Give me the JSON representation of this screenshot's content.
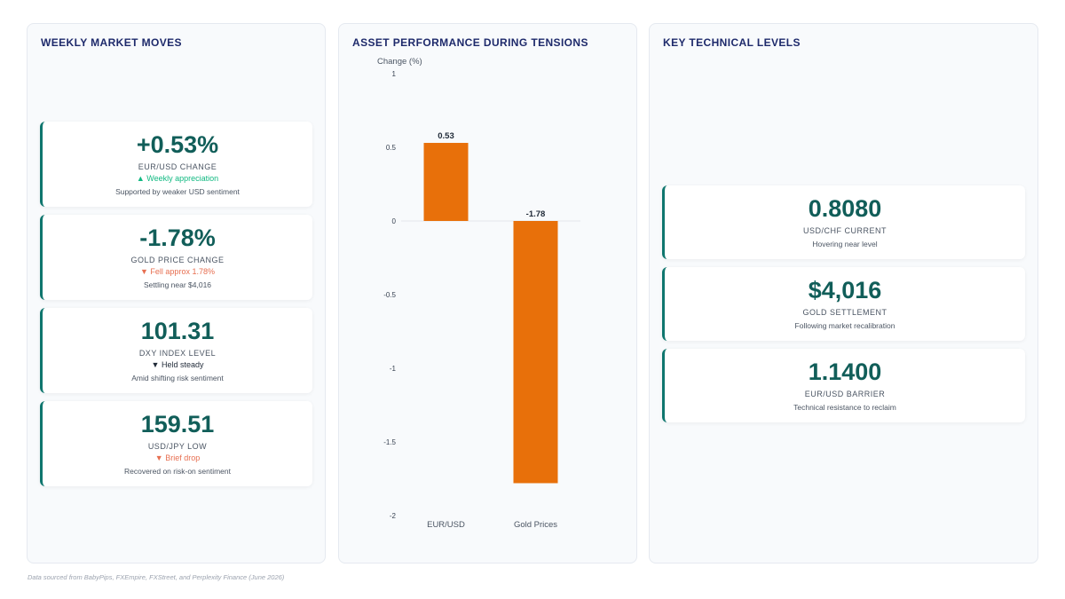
{
  "panels": {
    "weekly": {
      "title": "WEEKLY MARKET MOVES",
      "cards": [
        {
          "value": "+0.53%",
          "label": "EUR/USD CHANGE",
          "change": "▲ Weekly appreciation",
          "trend": "up",
          "note": "Supported by weaker USD sentiment"
        },
        {
          "value": "-1.78%",
          "label": "GOLD PRICE CHANGE",
          "change": "▼ Fell approx 1.78%",
          "trend": "down",
          "note": "Settling near $4,016"
        },
        {
          "value": "101.31",
          "label": "DXY INDEX LEVEL",
          "change": "▼ Held steady",
          "trend": "flat",
          "note": "Amid shifting risk sentiment"
        },
        {
          "value": "159.51",
          "label": "USD/JPY LOW",
          "change": "▼ Brief drop",
          "trend": "down",
          "note": "Recovered on risk-on sentiment"
        }
      ]
    },
    "performance": {
      "title": "ASSET PERFORMANCE DURING TENSIONS"
    },
    "technical": {
      "title": "KEY TECHNICAL LEVELS",
      "cards": [
        {
          "value": "0.8080",
          "label": "USD/CHF CURRENT",
          "note": "Hovering near level"
        },
        {
          "value": "$4,016",
          "label": "GOLD SETTLEMENT",
          "note": "Following market recalibration"
        },
        {
          "value": "1.1400",
          "label": "EUR/USD BARRIER",
          "note": "Technical resistance to reclaim"
        }
      ]
    }
  },
  "chart_data": {
    "type": "bar",
    "title": "ASSET PERFORMANCE DURING TENSIONS",
    "xlabel": "",
    "ylabel": "Change (%)",
    "categories": [
      "EUR/USD",
      "Gold Prices"
    ],
    "values": [
      0.53,
      -1.78
    ],
    "data_labels": [
      "0.53",
      "-1.78"
    ],
    "ylim": [
      -2,
      1
    ],
    "yticks": [
      1,
      0.5,
      0,
      -0.5,
      -1,
      -1.5,
      -2
    ],
    "ytick_labels": [
      "1",
      "0.5",
      "0",
      "-0.5",
      "-1",
      "-1.5",
      "-2"
    ],
    "grid": false,
    "bar_color": "#e8700a",
    "zero_line_color": "#e5e7eb"
  },
  "footer": "Data sourced from BabyPips, FXEmpire, FXStreet, and Perplexity Finance (June 2026)"
}
